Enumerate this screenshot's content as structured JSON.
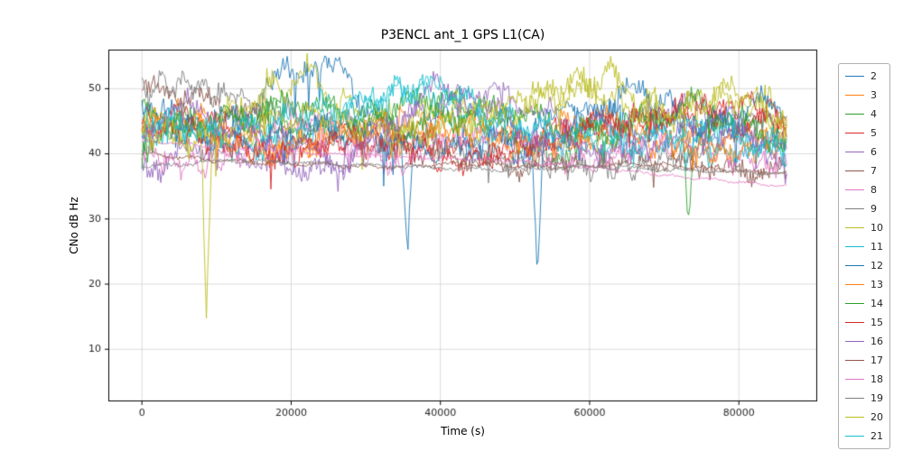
{
  "figure": {
    "background": "#ffffff"
  },
  "chart_data": {
    "type": "line",
    "title": "P3ENCL ant_1 GPS L1(CA)",
    "xlabel": "Time (s)",
    "ylabel": "CNo dB Hz",
    "xlim": [
      -4500,
      90500
    ],
    "ylim": [
      2,
      56
    ],
    "xticks": [
      0,
      20000,
      40000,
      60000,
      80000
    ],
    "yticks": [
      10,
      20,
      30,
      40,
      50
    ],
    "grid": true,
    "grid_color": "#d0d0d0",
    "axis_color": "#000000",
    "legend_position": "right-outside",
    "series": [
      {
        "name": "2",
        "color": "#1f77b4",
        "noise": 2.4,
        "spike": 6,
        "points": [
          [
            200,
            44
          ],
          [
            4000,
            46
          ],
          [
            9000,
            43
          ],
          [
            14000,
            47
          ],
          [
            18000,
            51
          ],
          [
            23000,
            54
          ],
          [
            26000,
            53
          ],
          [
            30000,
            48
          ],
          [
            34800,
            40
          ],
          [
            35500,
            27
          ],
          [
            36300,
            42
          ],
          [
            40000,
            45
          ],
          [
            46000,
            43
          ],
          [
            52000,
            44
          ],
          [
            58000,
            47
          ],
          [
            64000,
            45
          ],
          [
            70000,
            43
          ],
          [
            76000,
            45
          ],
          [
            82000,
            43
          ],
          [
            86400,
            41
          ]
        ]
      },
      {
        "name": "3",
        "color": "#ff7f0e",
        "noise": 2.0,
        "spike": 4,
        "points": [
          [
            0,
            44
          ],
          [
            6000,
            46
          ],
          [
            12000,
            43
          ],
          [
            20000,
            40
          ],
          [
            28000,
            44
          ],
          [
            36000,
            42
          ],
          [
            44000,
            45
          ],
          [
            52000,
            42
          ],
          [
            60000,
            46
          ],
          [
            68000,
            44
          ],
          [
            76000,
            42
          ],
          [
            86400,
            44
          ]
        ]
      },
      {
        "name": "4",
        "color": "#2ca02c",
        "noise": 2.1,
        "spike": 5,
        "points": [
          [
            0,
            47
          ],
          [
            8000,
            44
          ],
          [
            16000,
            46
          ],
          [
            24000,
            43
          ],
          [
            32000,
            47
          ],
          [
            40000,
            49
          ],
          [
            48000,
            44
          ],
          [
            55000,
            39
          ],
          [
            62000,
            44
          ],
          [
            70000,
            46
          ],
          [
            72500,
            44
          ],
          [
            73200,
            30
          ],
          [
            74000,
            43
          ],
          [
            80000,
            45
          ],
          [
            86400,
            43
          ]
        ]
      },
      {
        "name": "5",
        "color": "#d62728",
        "noise": 2.0,
        "spike": 4,
        "points": [
          [
            0,
            44
          ],
          [
            7000,
            46
          ],
          [
            14000,
            43
          ],
          [
            22000,
            41
          ],
          [
            30000,
            44
          ],
          [
            38000,
            42
          ],
          [
            46000,
            40
          ],
          [
            54000,
            43
          ],
          [
            62000,
            45
          ],
          [
            70000,
            46
          ],
          [
            78000,
            44
          ],
          [
            86400,
            46
          ]
        ]
      },
      {
        "name": "6",
        "color": "#9467bd",
        "noise": 2.0,
        "spike": 4,
        "points": [
          [
            0,
            38
          ],
          [
            8000,
            41
          ],
          [
            16000,
            39
          ],
          [
            24000,
            37
          ],
          [
            32000,
            42
          ],
          [
            40000,
            48
          ],
          [
            46000,
            50
          ],
          [
            52000,
            47
          ],
          [
            60000,
            44
          ],
          [
            68000,
            46
          ],
          [
            74000,
            48
          ],
          [
            80000,
            44
          ],
          [
            86400,
            40
          ]
        ]
      },
      {
        "name": "7",
        "color": "#8c564b",
        "noise": 1.8,
        "spike": 3,
        "points": [
          [
            0,
            50
          ],
          [
            6000,
            49
          ],
          [
            12000,
            47
          ],
          [
            20000,
            44
          ],
          [
            28000,
            42
          ],
          [
            36000,
            41
          ],
          [
            44000,
            39
          ],
          [
            52000,
            38
          ],
          [
            60000,
            40
          ],
          [
            68000,
            39
          ],
          [
            76000,
            38
          ],
          [
            86400,
            37
          ]
        ]
      },
      {
        "name": "8",
        "color": "#e377c2",
        "noise": 2.0,
        "spike": 4,
        "points": [
          [
            0,
            40
          ],
          [
            8000,
            38
          ],
          [
            15000,
            42
          ],
          [
            22000,
            45
          ],
          [
            28000,
            41
          ],
          [
            34000,
            38
          ],
          [
            40000,
            42
          ],
          [
            46000,
            43
          ],
          [
            54000,
            40
          ],
          [
            62000,
            39
          ],
          [
            70000,
            42
          ],
          [
            78000,
            40
          ],
          [
            86400,
            38
          ]
        ]
      },
      {
        "name": "9",
        "color": "#7f7f7f",
        "noise": 1.9,
        "spike": 3,
        "points": [
          [
            0,
            50
          ],
          [
            6000,
            51
          ],
          [
            12000,
            49
          ],
          [
            18000,
            47
          ],
          [
            26000,
            45
          ],
          [
            34000,
            43
          ],
          [
            42000,
            41
          ],
          [
            50000,
            39
          ],
          [
            58000,
            38
          ],
          [
            66000,
            38
          ],
          [
            74000,
            40
          ],
          [
            80000,
            44
          ],
          [
            86400,
            46
          ]
        ]
      },
      {
        "name": "10",
        "color": "#bcbd22",
        "noise": 2.5,
        "spike": 8,
        "points": [
          [
            0,
            45
          ],
          [
            4000,
            44
          ],
          [
            8000,
            42
          ],
          [
            8600,
            15
          ],
          [
            9400,
            44
          ],
          [
            14000,
            48
          ],
          [
            19000,
            51
          ],
          [
            23000,
            52
          ],
          [
            28000,
            46
          ],
          [
            34000,
            45
          ],
          [
            40000,
            47
          ],
          [
            46000,
            45
          ],
          [
            52000,
            48
          ],
          [
            58000,
            51
          ],
          [
            62000,
            52
          ],
          [
            67000,
            48
          ],
          [
            72000,
            46
          ],
          [
            78000,
            50
          ],
          [
            83000,
            48
          ],
          [
            86400,
            46
          ]
        ]
      },
      {
        "name": "11",
        "color": "#17becf",
        "noise": 2.1,
        "spike": 4,
        "points": [
          [
            0,
            42
          ],
          [
            7000,
            44
          ],
          [
            14000,
            41
          ],
          [
            21000,
            43
          ],
          [
            28000,
            46
          ],
          [
            34000,
            50
          ],
          [
            38000,
            50
          ],
          [
            44000,
            46
          ],
          [
            50000,
            43
          ],
          [
            56000,
            42
          ],
          [
            62000,
            44
          ],
          [
            70000,
            42
          ],
          [
            78000,
            40
          ],
          [
            86400,
            42
          ]
        ]
      },
      {
        "name": "12",
        "color": "#1f77b4",
        "noise": 2.2,
        "spike": 6,
        "points": [
          [
            0,
            46
          ],
          [
            8000,
            43
          ],
          [
            16000,
            42
          ],
          [
            24000,
            44
          ],
          [
            32000,
            42
          ],
          [
            40000,
            41
          ],
          [
            47000,
            42
          ],
          [
            52300,
            40
          ],
          [
            53000,
            19
          ],
          [
            53800,
            41
          ],
          [
            58000,
            45
          ],
          [
            63000,
            48
          ],
          [
            67000,
            50
          ],
          [
            72000,
            46
          ],
          [
            78000,
            44
          ],
          [
            83000,
            48
          ],
          [
            86400,
            47
          ]
        ]
      },
      {
        "name": "13",
        "color": "#ff7f0e",
        "noise": 2.0,
        "spike": 4,
        "points": [
          [
            0,
            44
          ],
          [
            5000,
            46
          ],
          [
            10000,
            43
          ],
          [
            16000,
            40
          ],
          [
            23000,
            42
          ],
          [
            30000,
            44
          ],
          [
            37000,
            45
          ],
          [
            44000,
            43
          ],
          [
            51000,
            41
          ],
          [
            58000,
            42
          ],
          [
            65000,
            43
          ],
          [
            72000,
            41
          ],
          [
            79000,
            40
          ],
          [
            86400,
            42
          ]
        ]
      },
      {
        "name": "14",
        "color": "#2ca02c",
        "noise": 2.1,
        "spike": 4,
        "points": [
          [
            0,
            42
          ],
          [
            7000,
            45
          ],
          [
            14000,
            46
          ],
          [
            21000,
            48
          ],
          [
            28000,
            46
          ],
          [
            35000,
            44
          ],
          [
            42000,
            46
          ],
          [
            49000,
            47
          ],
          [
            56000,
            44
          ],
          [
            63000,
            43
          ],
          [
            70000,
            46
          ],
          [
            75000,
            48
          ],
          [
            81000,
            44
          ],
          [
            86400,
            42
          ]
        ]
      },
      {
        "name": "15",
        "color": "#d62728",
        "noise": 2.0,
        "spike": 4,
        "points": [
          [
            0,
            45
          ],
          [
            6000,
            43
          ],
          [
            13000,
            41
          ],
          [
            20000,
            40
          ],
          [
            27000,
            42
          ],
          [
            34000,
            41
          ],
          [
            41000,
            39
          ],
          [
            48000,
            40
          ],
          [
            55000,
            42
          ],
          [
            62000,
            44
          ],
          [
            69000,
            46
          ],
          [
            76000,
            47
          ],
          [
            81000,
            48
          ],
          [
            86400,
            45
          ]
        ]
      },
      {
        "name": "16",
        "color": "#9467bd",
        "noise": 2.1,
        "spike": 4,
        "points": [
          [
            0,
            44
          ],
          [
            6000,
            47
          ],
          [
            12000,
            44
          ],
          [
            19000,
            41
          ],
          [
            26000,
            39
          ],
          [
            33000,
            44
          ],
          [
            39000,
            50
          ],
          [
            44000,
            48
          ],
          [
            51000,
            44
          ],
          [
            58000,
            41
          ],
          [
            65000,
            40
          ],
          [
            72000,
            43
          ],
          [
            79000,
            44
          ],
          [
            86400,
            38
          ]
        ]
      },
      {
        "name": "17",
        "color": "#8c564b",
        "noise": 0.4,
        "spike": 0,
        "points": [
          [
            0,
            40
          ],
          [
            10000,
            39
          ],
          [
            20000,
            38.5
          ],
          [
            32000,
            38
          ],
          [
            44000,
            38.5
          ],
          [
            56000,
            38
          ],
          [
            68000,
            38.5
          ],
          [
            78000,
            37.5
          ],
          [
            86400,
            37
          ]
        ]
      },
      {
        "name": "18",
        "color": "#e377c2",
        "noise": 0.25,
        "spike": 0,
        "points": [
          [
            0,
            42
          ],
          [
            12000,
            41
          ],
          [
            24000,
            40
          ],
          [
            36000,
            39.5
          ],
          [
            48000,
            39
          ],
          [
            60000,
            38
          ],
          [
            72000,
            36.5
          ],
          [
            86400,
            35
          ]
        ]
      },
      {
        "name": "19",
        "color": "#7f7f7f",
        "noise": 0.35,
        "spike": 0,
        "points": [
          [
            0,
            38
          ],
          [
            12000,
            39
          ],
          [
            24000,
            38.5
          ],
          [
            36000,
            38
          ],
          [
            48000,
            37.5
          ],
          [
            60000,
            38
          ],
          [
            72000,
            37.5
          ],
          [
            86400,
            37
          ]
        ]
      },
      {
        "name": "20",
        "color": "#bcbd22",
        "noise": 2.2,
        "spike": 5,
        "points": [
          [
            0,
            44
          ],
          [
            6000,
            42
          ],
          [
            12000,
            43
          ],
          [
            18000,
            45
          ],
          [
            24000,
            46
          ],
          [
            30000,
            44
          ],
          [
            36000,
            43
          ],
          [
            42000,
            45
          ],
          [
            48000,
            47
          ],
          [
            54000,
            49
          ],
          [
            60000,
            50
          ],
          [
            66000,
            47
          ],
          [
            72000,
            46
          ],
          [
            78000,
            49
          ],
          [
            82000,
            48
          ],
          [
            86400,
            44
          ]
        ]
      },
      {
        "name": "21",
        "color": "#17becf",
        "noise": 2.1,
        "spike": 4,
        "points": [
          [
            0,
            46
          ],
          [
            6000,
            44
          ],
          [
            12000,
            43
          ],
          [
            18000,
            45
          ],
          [
            24000,
            47
          ],
          [
            30000,
            48
          ],
          [
            36000,
            50
          ],
          [
            41000,
            50
          ],
          [
            47000,
            46
          ],
          [
            53000,
            44
          ],
          [
            59000,
            42
          ],
          [
            65000,
            41
          ],
          [
            71000,
            43
          ],
          [
            77000,
            44
          ],
          [
            82000,
            41
          ],
          [
            86400,
            40
          ]
        ]
      }
    ]
  }
}
